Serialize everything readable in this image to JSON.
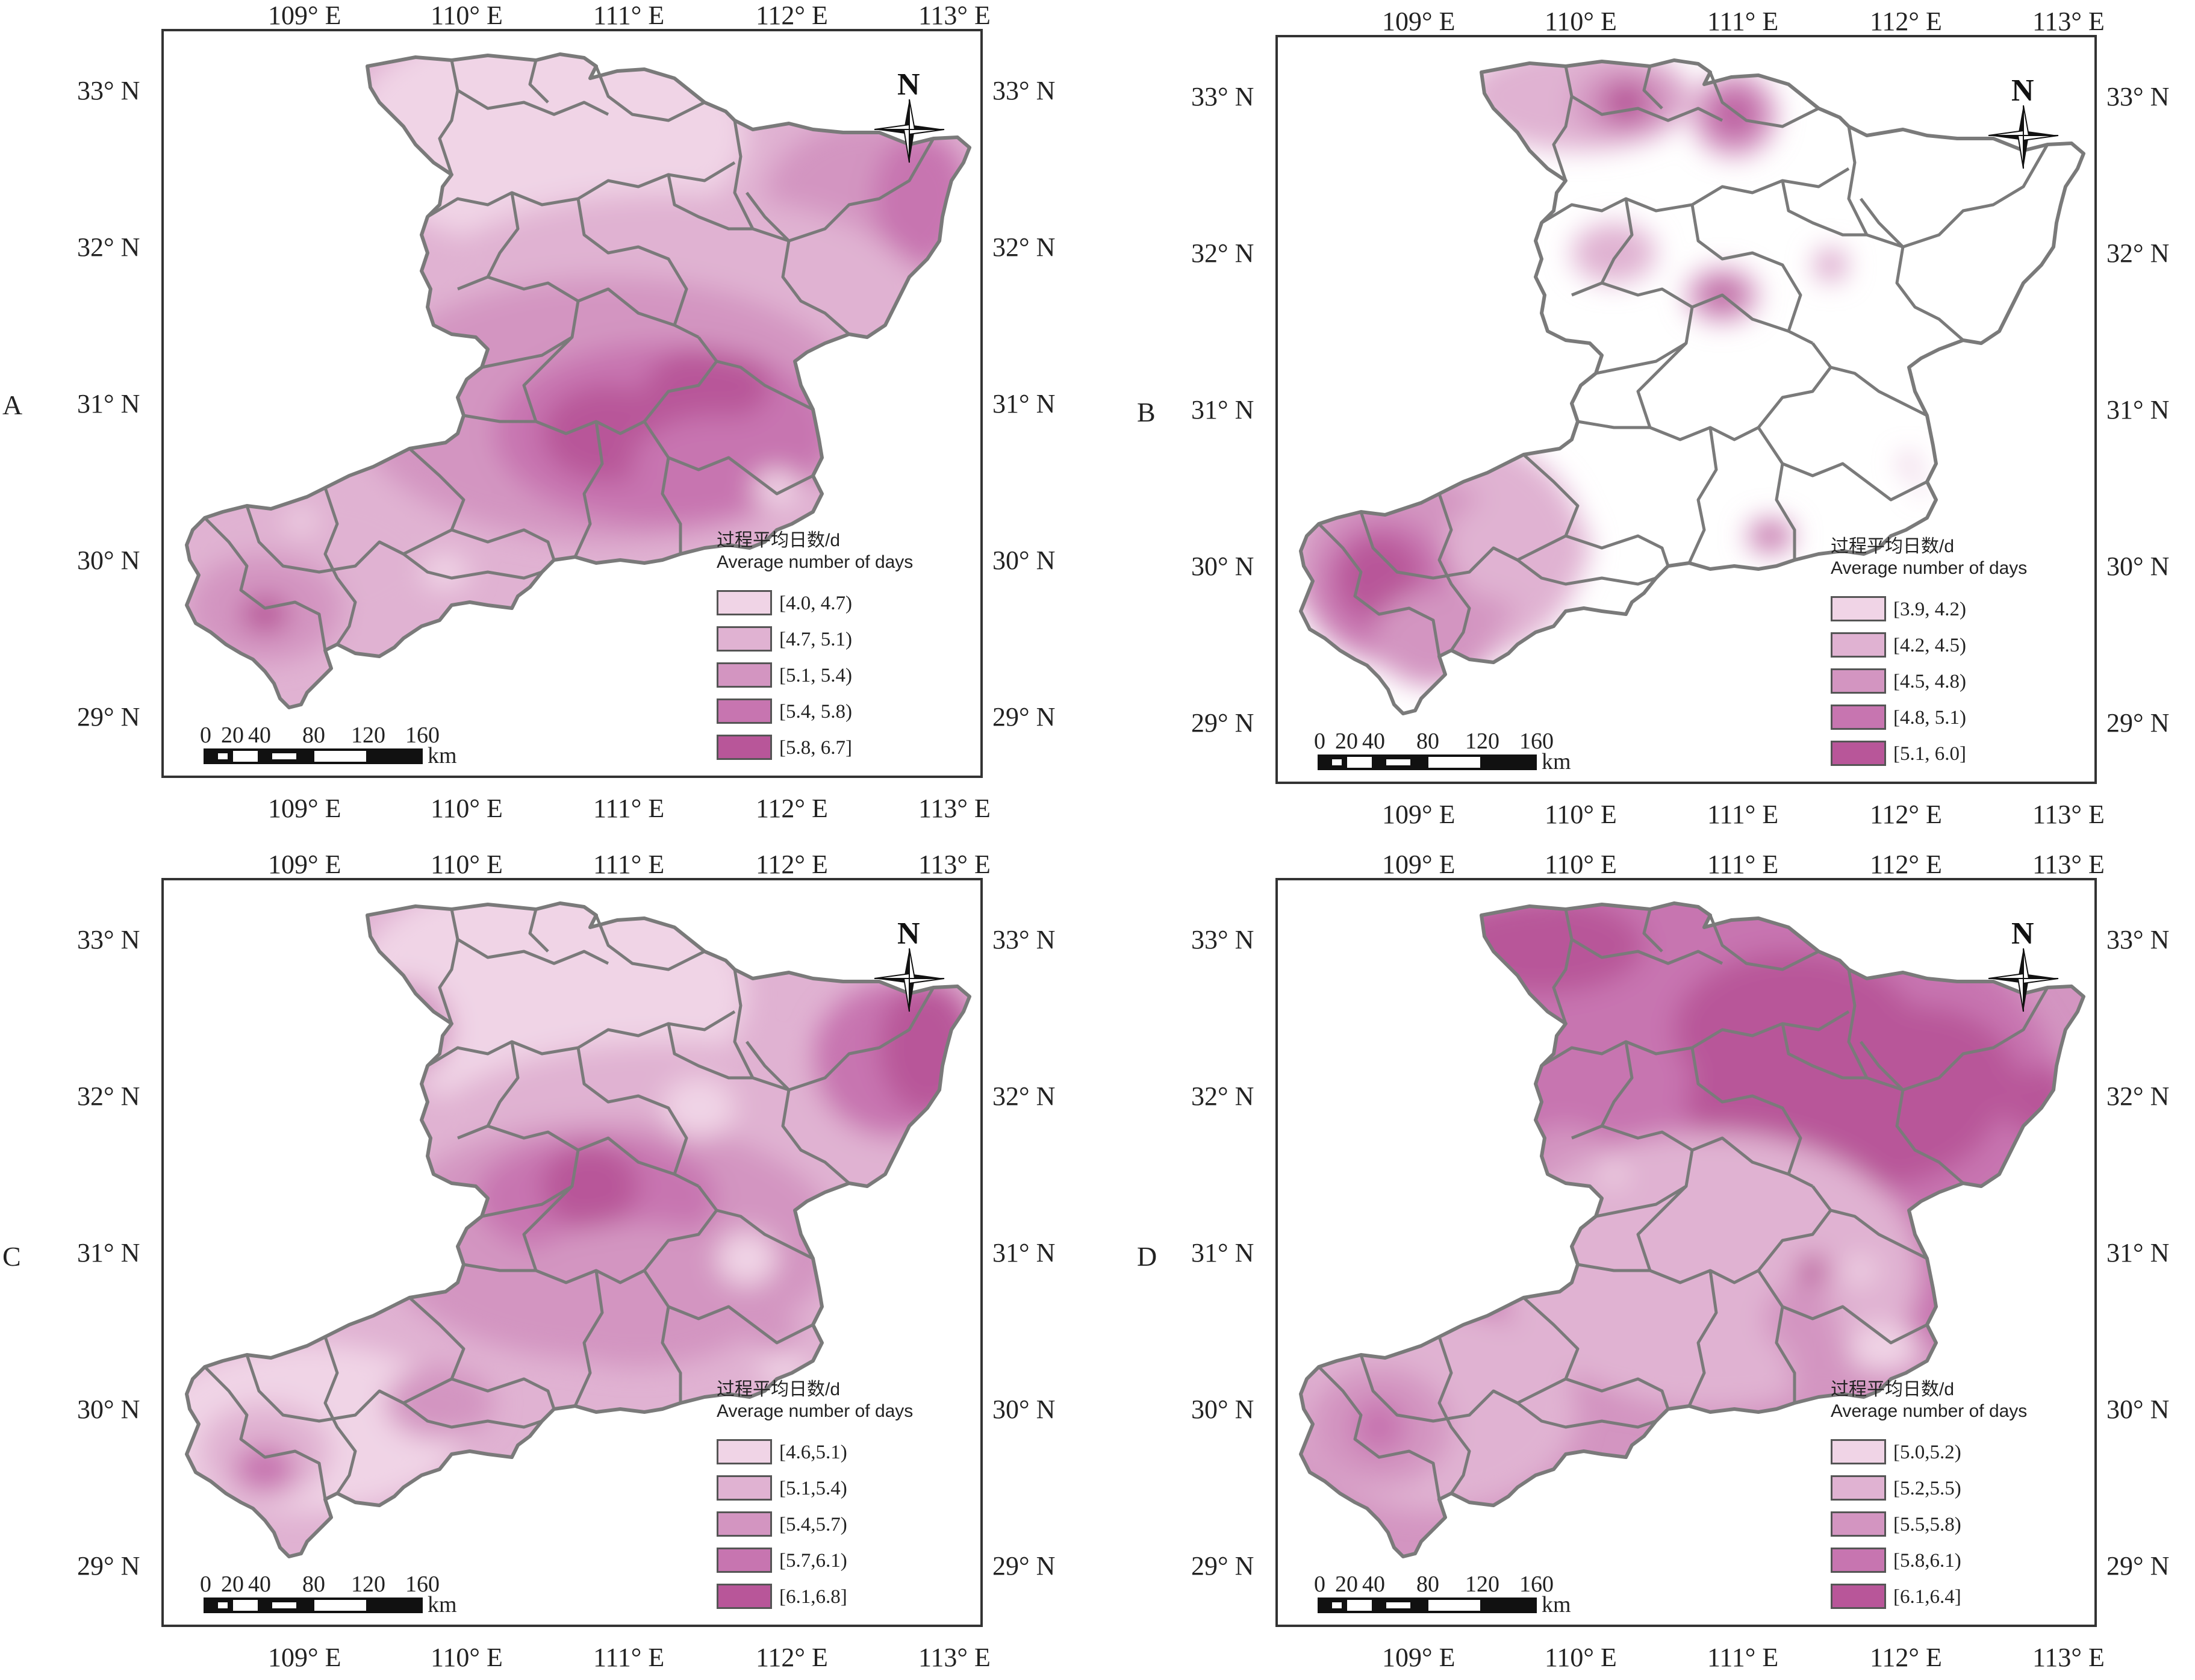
{
  "colors": {
    "c1": "#f0d4e6",
    "c2": "#e0b2d2",
    "c3": "#d395c1",
    "c4": "#c775b0",
    "c5": "#b85699",
    "white": "#ffffff",
    "border": "#7a7a7a",
    "frame": "#333333"
  },
  "axes": {
    "lon_labels": [
      "109° E",
      "110° E",
      "111° E",
      "112° E",
      "113° E"
    ],
    "lat_labels": [
      "33° N",
      "32° N",
      "31° N",
      "30° N",
      "29° N"
    ]
  },
  "north_arrow_label": "N",
  "scale_bar": {
    "ticks": [
      "0",
      "20",
      "40",
      "80",
      "120",
      "160"
    ],
    "unit": "km"
  },
  "legend_title_cn": "过程平均日数/d",
  "legend_title_en": "Average number of days",
  "panels": [
    {
      "id": "A",
      "label": "A",
      "fill_scheme": "graded",
      "classes": [
        "[4.0, 4.7)",
        "[4.7, 5.1)",
        "[5.1, 5.4)",
        "[5.4, 5.8)",
        "[5.8, 6.7]"
      ]
    },
    {
      "id": "B",
      "label": "B",
      "fill_scheme": "mostly-white",
      "classes": [
        "[3.9, 4.2)",
        "[4.2, 4.5)",
        "[4.5, 4.8)",
        "[4.8, 5.1)",
        "[5.1, 6.0]"
      ]
    },
    {
      "id": "C",
      "label": "C",
      "fill_scheme": "graded",
      "classes": [
        "[4.6,5.1)",
        "[5.1,5.4)",
        "[5.4,5.7)",
        "[5.7,6.1)",
        "[6.1,6.8]"
      ]
    },
    {
      "id": "D",
      "label": "D",
      "fill_scheme": "high",
      "classes": [
        "[5.0,5.2)",
        "[5.2,5.5)",
        "[5.5,5.8)",
        "[5.8,6.1)",
        "[6.1,6.4]"
      ]
    }
  ]
}
